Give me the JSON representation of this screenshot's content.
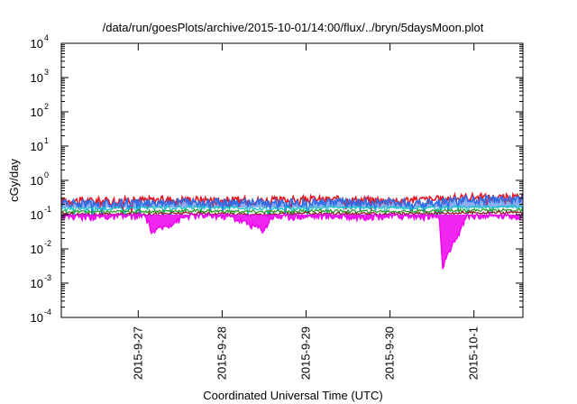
{
  "chart_data": {
    "type": "area",
    "title": "/data/run/goesPlots/archive/2015-10-01/14:00/flux/../bryn/5daysMoon.plot",
    "xlabel": "Coordinated Universal Time (UTC)",
    "ylabel": "cGy/day",
    "y_scale": "log",
    "ylim": [
      0.0001,
      10000
    ],
    "y_ticks": [
      {
        "value": 0.0001,
        "base": "10",
        "exp": "-4"
      },
      {
        "value": 0.001,
        "base": "10",
        "exp": "-3"
      },
      {
        "value": 0.01,
        "base": "10",
        "exp": "-2"
      },
      {
        "value": 0.1,
        "base": "10",
        "exp": "-1"
      },
      {
        "value": 1,
        "base": "10",
        "exp": "0"
      },
      {
        "value": 10,
        "base": "10",
        "exp": "1"
      },
      {
        "value": 100,
        "base": "10",
        "exp": "2"
      },
      {
        "value": 1000,
        "base": "10",
        "exp": "3"
      },
      {
        "value": 10000,
        "base": "10",
        "exp": "4"
      }
    ],
    "xlim": [
      "2015-09-26T02:00",
      "2015-10-01T14:00"
    ],
    "x_ticks": [
      {
        "value": "2015-09-27T00:00",
        "label": "2015-9-27"
      },
      {
        "value": "2015-09-28T00:00",
        "label": "2015-9-28"
      },
      {
        "value": "2015-09-29T00:00",
        "label": "2015-9-29"
      },
      {
        "value": "2015-09-30T00:00",
        "label": "2015-9-30"
      },
      {
        "value": "2015-10-01T00:00",
        "label": "2015-10-1"
      }
    ],
    "grid": false,
    "legend": "none",
    "series": [
      {
        "color": "#e8141e",
        "x": [
          "2015-09-26T02:00",
          "2015-09-26T14:00",
          "2015-09-27T02:00",
          "2015-09-27T14:00",
          "2015-09-28T02:00",
          "2015-09-28T14:00",
          "2015-09-29T02:00",
          "2015-09-29T14:00",
          "2015-09-30T02:00",
          "2015-09-30T14:00",
          "2015-09-30T22:00",
          "2015-10-01T14:00"
        ],
        "y": [
          0.26,
          0.25,
          0.27,
          0.28,
          0.27,
          0.26,
          0.28,
          0.27,
          0.27,
          0.28,
          0.33,
          0.31
        ]
      },
      {
        "color": "#2f6de6",
        "x": [
          "2015-09-26T02:00",
          "2015-09-26T14:00",
          "2015-09-27T02:00",
          "2015-09-27T14:00",
          "2015-09-28T02:00",
          "2015-09-28T14:00",
          "2015-09-29T02:00",
          "2015-09-29T14:00",
          "2015-09-30T02:00",
          "2015-09-30T14:00",
          "2015-09-30T22:00",
          "2015-10-01T14:00"
        ],
        "y": [
          0.22,
          0.21,
          0.23,
          0.24,
          0.23,
          0.22,
          0.24,
          0.23,
          0.23,
          0.24,
          0.28,
          0.27
        ]
      },
      {
        "color": "#17c3c8",
        "x": [
          "2015-09-26T02:00",
          "2015-09-26T14:00",
          "2015-09-27T02:00",
          "2015-09-27T14:00",
          "2015-09-28T02:00",
          "2015-09-28T14:00",
          "2015-09-29T02:00",
          "2015-09-29T14:00",
          "2015-09-30T02:00",
          "2015-09-30T14:00",
          "2015-09-30T22:00",
          "2015-10-01T14:00"
        ],
        "y": [
          0.15,
          0.15,
          0.16,
          0.16,
          0.16,
          0.15,
          0.16,
          0.16,
          0.16,
          0.16,
          0.17,
          0.17
        ]
      },
      {
        "color": "#2ca02c",
        "x": [
          "2015-09-26T02:00",
          "2015-09-26T14:00",
          "2015-09-27T02:00",
          "2015-09-27T14:00",
          "2015-09-28T02:00",
          "2015-09-28T14:00",
          "2015-09-29T02:00",
          "2015-09-29T14:00",
          "2015-09-30T02:00",
          "2015-09-30T14:00",
          "2015-09-30T22:00",
          "2015-10-01T14:00"
        ],
        "y": [
          0.125,
          0.12,
          0.125,
          0.13,
          0.125,
          0.12,
          0.13,
          0.125,
          0.125,
          0.13,
          0.135,
          0.135
        ]
      },
      {
        "color": "#8b1a2b",
        "x": [
          "2015-09-26T02:00",
          "2015-09-26T14:00",
          "2015-09-27T02:00",
          "2015-09-27T14:00",
          "2015-09-28T02:00",
          "2015-09-28T14:00",
          "2015-09-29T02:00",
          "2015-09-29T14:00",
          "2015-09-30T02:00",
          "2015-09-30T14:00",
          "2015-09-30T22:00",
          "2015-10-01T14:00"
        ],
        "y": [
          0.105,
          0.1,
          0.105,
          0.11,
          0.105,
          0.1,
          0.11,
          0.105,
          0.105,
          0.11,
          0.115,
          0.115
        ]
      },
      {
        "color": "#ee00ee",
        "x": [
          "2015-09-26T02:00",
          "2015-09-26T14:00",
          "2015-09-27T02:00",
          "2015-09-27T04:00",
          "2015-09-27T14:00",
          "2015-09-28T02:00",
          "2015-09-28T12:00",
          "2015-09-28T14:00",
          "2015-09-29T02:00",
          "2015-09-29T14:00",
          "2015-09-30T02:00",
          "2015-09-30T14:00",
          "2015-09-30T15:00",
          "2015-09-30T22:00",
          "2015-10-01T14:00"
        ],
        "y": [
          0.09,
          0.085,
          0.09,
          0.03,
          0.09,
          0.09,
          0.035,
          0.085,
          0.09,
          0.085,
          0.09,
          0.085,
          0.003,
          0.09,
          0.09
        ]
      }
    ]
  }
}
